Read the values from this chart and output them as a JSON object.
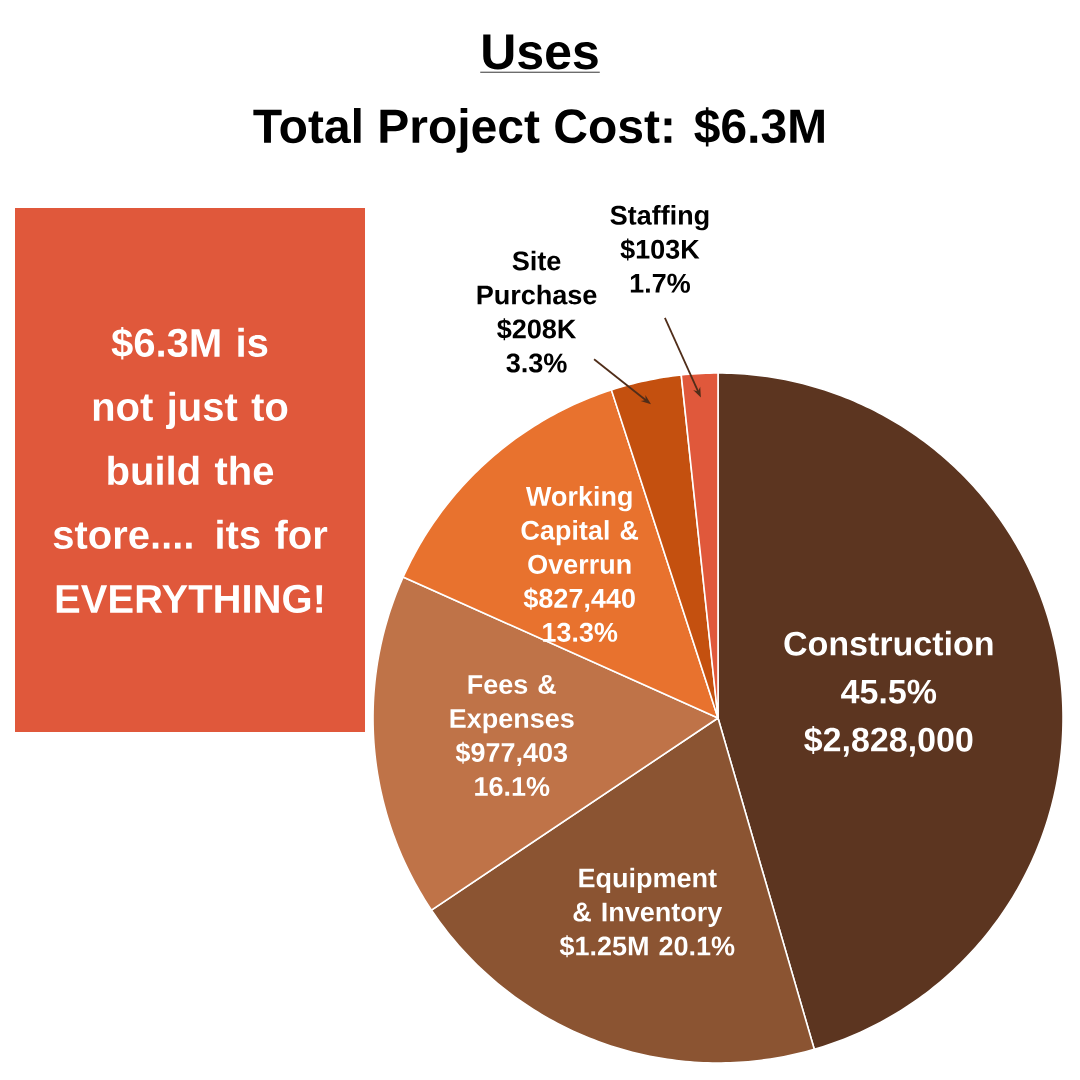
{
  "chart_data": {
    "type": "pie",
    "title": "Uses",
    "subtitle": "Total Project Cost: $6.3M",
    "categories": [
      "Construction",
      "Equipment & Inventory",
      "Fees & Expenses",
      "Working Capital & Overrun",
      "Site Purchase",
      "Staffing"
    ],
    "values": [
      45.5,
      20.1,
      16.1,
      13.3,
      3.3,
      1.7
    ],
    "colors": [
      "#5c3520",
      "#8b5432",
      "#bf7348",
      "#e8722e",
      "#c4500f",
      "#e0583b"
    ],
    "value_labels": [
      "45.5% $2,828,000",
      "$1.25M 20.1%",
      "$977,403 16.1%",
      "$827,440 13.3%",
      "$208K 3.3%",
      "$103K 1.7%"
    ],
    "annotations": [
      "$6.3M is not just to build the store.... its for EVERYTHING!"
    ]
  }
}
